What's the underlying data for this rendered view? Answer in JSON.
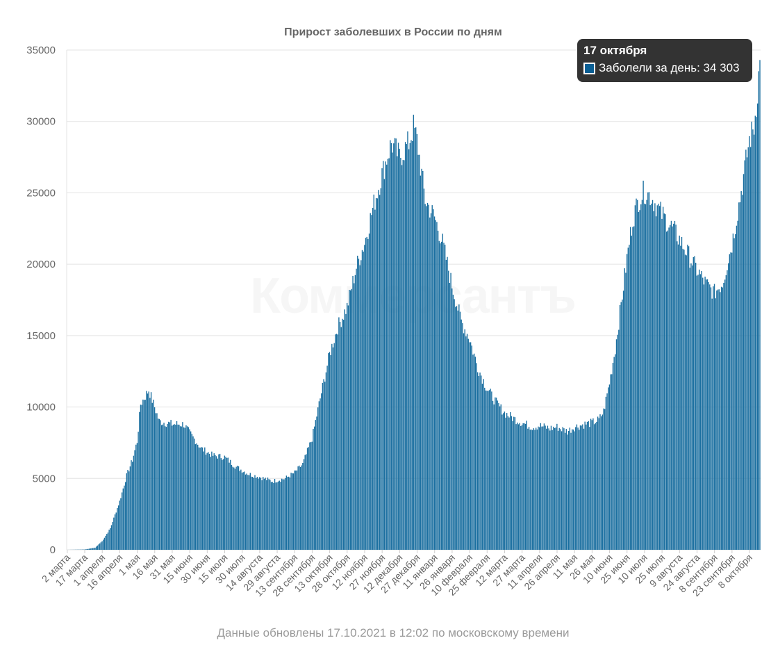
{
  "chart_data": {
    "type": "bar",
    "title": "Прирост заболевших в России по дням",
    "footer": "Данные обновлены 17.10.2021 в 12:02 по московскому времени",
    "watermark": "Коммерсантъ",
    "bar_color": "#1b6fa0",
    "ylim": [
      0,
      35000
    ],
    "y_ticks": [
      0,
      5000,
      10000,
      15000,
      20000,
      25000,
      30000,
      35000
    ],
    "x_start_date": "2020-03-02",
    "x_end_date": "2021-10-17",
    "x_tick_labels": [
      "2 марта",
      "17 марта",
      "1 апреля",
      "16 апреля",
      "1 мая",
      "16 мая",
      "31 мая",
      "15 июня",
      "30 июня",
      "15 июля",
      "30 июля",
      "14 августа",
      "29 августа",
      "13 сентября",
      "28 сентября",
      "13 октября",
      "28 октября",
      "12 ноября",
      "27 ноября",
      "12 декабря",
      "27 декабря",
      "11 января",
      "26 января",
      "10 февраля",
      "25 февраля",
      "12 марта",
      "27 марта",
      "11 апреля",
      "26 апреля",
      "11 мая",
      "26 мая",
      "10 июня",
      "25 июня",
      "10 июля",
      "25 июля",
      "9 августа",
      "24 августа",
      "8 сентября",
      "23 сентября",
      "8 октября"
    ],
    "series": [
      {
        "name": "Заболели за день",
        "keypoints": [
          [
            "2020-03-02",
            0
          ],
          [
            "2020-03-17",
            20
          ],
          [
            "2020-03-26",
            150
          ],
          [
            "2020-04-01",
            600
          ],
          [
            "2020-04-08",
            1500
          ],
          [
            "2020-04-16",
            3400
          ],
          [
            "2020-04-22",
            5200
          ],
          [
            "2020-04-27",
            6300
          ],
          [
            "2020-05-01",
            7600
          ],
          [
            "2020-05-04",
            10200
          ],
          [
            "2020-05-11",
            11200
          ],
          [
            "2020-05-16",
            10000
          ],
          [
            "2020-05-20",
            9000
          ],
          [
            "2020-05-31",
            8800
          ],
          [
            "2020-06-10",
            8800
          ],
          [
            "2020-06-15",
            8200
          ],
          [
            "2020-06-25",
            7100
          ],
          [
            "2020-07-05",
            6600
          ],
          [
            "2020-07-15",
            6500
          ],
          [
            "2020-07-25",
            5800
          ],
          [
            "2020-08-05",
            5300
          ],
          [
            "2020-08-14",
            5100
          ],
          [
            "2020-08-25",
            4800
          ],
          [
            "2020-09-05",
            5000
          ],
          [
            "2020-09-13",
            5400
          ],
          [
            "2020-09-20",
            6000
          ],
          [
            "2020-09-28",
            7800
          ],
          [
            "2020-10-06",
            11000
          ],
          [
            "2020-10-13",
            13700
          ],
          [
            "2020-10-20",
            15600
          ],
          [
            "2020-10-28",
            17000
          ],
          [
            "2020-11-05",
            19800
          ],
          [
            "2020-11-12",
            21500
          ],
          [
            "2020-11-20",
            24200
          ],
          [
            "2020-11-27",
            26300
          ],
          [
            "2020-12-05",
            28500
          ],
          [
            "2020-12-12",
            27500
          ],
          [
            "2020-12-20",
            28500
          ],
          [
            "2020-12-24",
            29600
          ],
          [
            "2020-12-27",
            28700
          ],
          [
            "2021-01-03",
            24500
          ],
          [
            "2021-01-11",
            23300
          ],
          [
            "2021-01-18",
            21500
          ],
          [
            "2021-01-26",
            18500
          ],
          [
            "2021-02-03",
            16000
          ],
          [
            "2021-02-10",
            14800
          ],
          [
            "2021-02-17",
            12800
          ],
          [
            "2021-02-25",
            11300
          ],
          [
            "2021-03-05",
            10300
          ],
          [
            "2021-03-12",
            9600
          ],
          [
            "2021-03-20",
            9200
          ],
          [
            "2021-03-27",
            8900
          ],
          [
            "2021-04-05",
            8600
          ],
          [
            "2021-04-11",
            8700
          ],
          [
            "2021-04-20",
            8500
          ],
          [
            "2021-04-26",
            8600
          ],
          [
            "2021-05-05",
            8300
          ],
          [
            "2021-05-11",
            8600
          ],
          [
            "2021-05-20",
            8800
          ],
          [
            "2021-05-26",
            8900
          ],
          [
            "2021-06-01",
            9100
          ],
          [
            "2021-06-05",
            9700
          ],
          [
            "2021-06-10",
            11700
          ],
          [
            "2021-06-15",
            14100
          ],
          [
            "2021-06-20",
            17200
          ],
          [
            "2021-06-25",
            20400
          ],
          [
            "2021-06-30",
            23200
          ],
          [
            "2021-07-05",
            24500
          ],
          [
            "2021-07-10",
            25100
          ],
          [
            "2021-07-15",
            24800
          ],
          [
            "2021-07-25",
            23500
          ],
          [
            "2021-08-05",
            22300
          ],
          [
            "2021-08-15",
            20900
          ],
          [
            "2021-08-24",
            19600
          ],
          [
            "2021-09-01",
            18600
          ],
          [
            "2021-09-08",
            18000
          ],
          [
            "2021-09-15",
            18700
          ],
          [
            "2021-09-23",
            21400
          ],
          [
            "2021-10-01",
            25100
          ],
          [
            "2021-10-08",
            28700
          ],
          [
            "2021-10-12",
            29600
          ],
          [
            "2021-10-15",
            32100
          ],
          [
            "2021-10-17",
            34303
          ]
        ]
      }
    ],
    "tooltip": {
      "date": "17 октября",
      "series_label": "Заболели за день: 34 303"
    }
  }
}
